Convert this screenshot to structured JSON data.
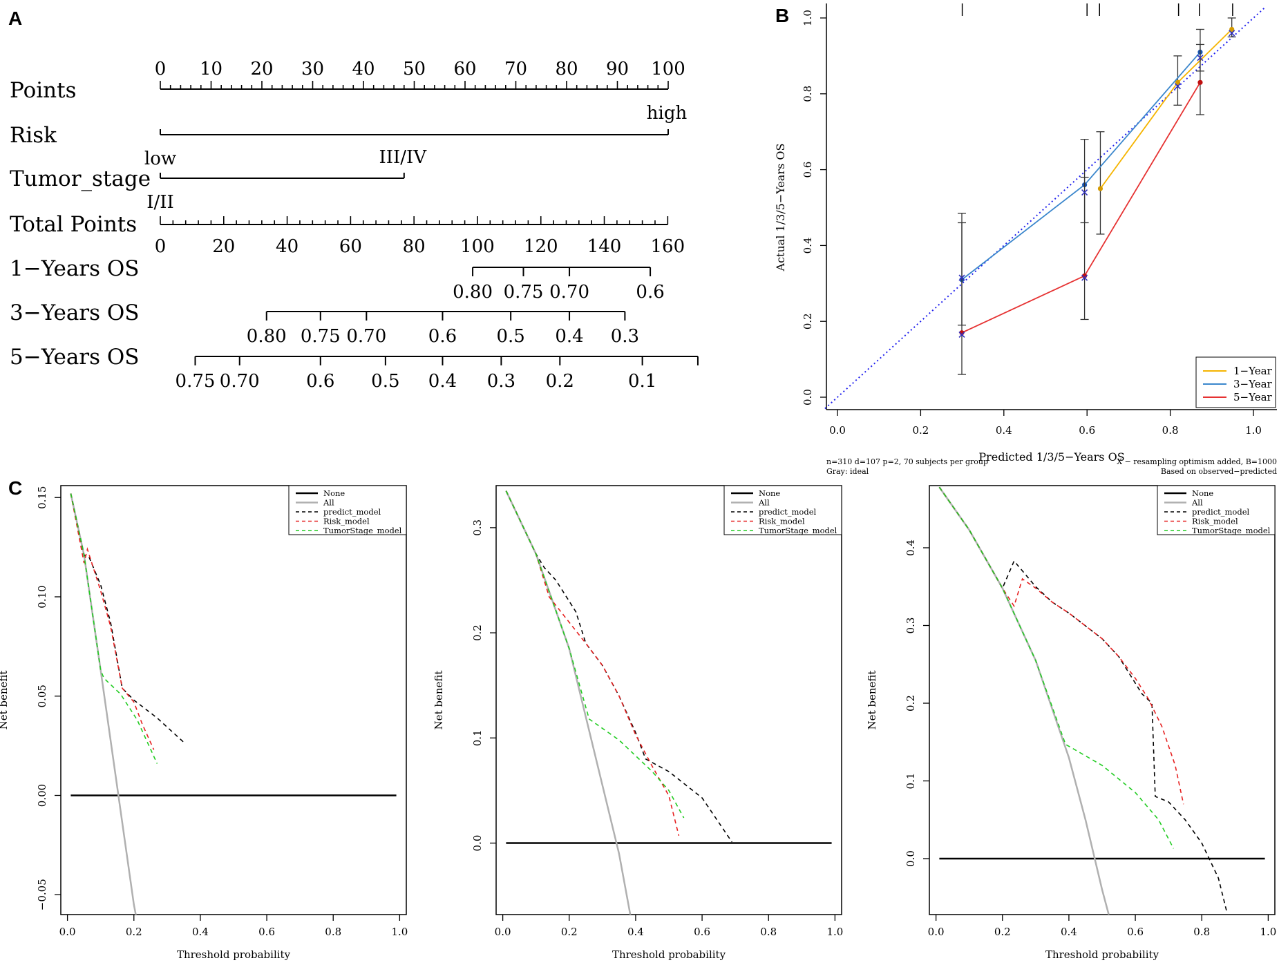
{
  "panels": {
    "a": "A",
    "b": "B",
    "c": "C"
  },
  "nomogram": {
    "rows": [
      {
        "id": "points",
        "label": "Points"
      },
      {
        "id": "risk",
        "label": "Risk"
      },
      {
        "id": "tumor",
        "label": "Tumor_stage"
      },
      {
        "id": "total",
        "label": "Total Points"
      },
      {
        "id": "os1",
        "label": "1−Years OS"
      },
      {
        "id": "os3",
        "label": "3−Years OS"
      },
      {
        "id": "os5",
        "label": "5−Years OS"
      }
    ],
    "points_ticks": [
      "0",
      "10",
      "20",
      "30",
      "40",
      "50",
      "60",
      "70",
      "80",
      "90",
      "100"
    ],
    "risk": {
      "low_label": "low",
      "high_label": "high",
      "low_points": 0,
      "high_points": 100
    },
    "tumor_stage": {
      "low_label": "I/II",
      "high_label": "III/IV",
      "low_points": 0,
      "high_points": 48
    },
    "total_points_ticks": [
      "0",
      "20",
      "40",
      "60",
      "80",
      "100",
      "120",
      "140",
      "160"
    ],
    "os1": [
      {
        "label": "0.80",
        "total": 98.5
      },
      {
        "label": "0.75",
        "total": 114.5
      },
      {
        "label": "0.70",
        "total": 129
      },
      {
        "label": "0.6",
        "total": 154.5
      }
    ],
    "os3": [
      {
        "label": "0.80",
        "total": 33.5
      },
      {
        "label": "0.75",
        "total": 50.5
      },
      {
        "label": "0.70",
        "total": 65
      },
      {
        "label": "0.6",
        "total": 89
      },
      {
        "label": "0.5",
        "total": 110.5
      },
      {
        "label": "0.4",
        "total": 129
      },
      {
        "label": "0.3",
        "total": 146.5
      }
    ],
    "os5": [
      {
        "label": "0.75",
        "total": 11
      },
      {
        "label": "0.70",
        "total": 25
      },
      {
        "label": "0.6",
        "total": 50.5
      },
      {
        "label": "0.5",
        "total": 71
      },
      {
        "label": "0.4",
        "total": 89
      },
      {
        "label": "0.3",
        "total": 107.5
      },
      {
        "label": "0.2",
        "total": 126
      },
      {
        "label": "0.1",
        "total": 152
      },
      {
        "label": "",
        "total": 169.5
      }
    ]
  },
  "chart_data": [
    {
      "type": "line",
      "panel": "B",
      "title": "",
      "xlabel": "Predicted 1/3/5−Years OS",
      "ylabel": "Actual 1/3/5−Years OS",
      "xlim": [
        -0.03,
        1.03
      ],
      "ylim": [
        -0.03,
        1.03
      ],
      "xticks": [
        "0.0",
        "0.2",
        "0.4",
        "0.6",
        "0.8",
        "1.0"
      ],
      "yticks": [
        "0.0",
        "0.2",
        "0.4",
        "0.6",
        "0.8",
        "1.0"
      ],
      "legend_position": "bottom-right",
      "series": [
        {
          "name": "1−Year",
          "color": "#f5b400",
          "points": [
            {
              "x": 0.632,
              "y": 0.55,
              "lo": 0.43,
              "hi": 0.7,
              "xc": 0.632
            },
            {
              "x": 0.818,
              "y": 0.83,
              "lo": 0.77,
              "hi": 0.9,
              "xc": 0.818
            },
            {
              "x": 0.948,
              "y": 0.97,
              "lo": 0.95,
              "hi": 1.0,
              "xc": 0.948
            }
          ]
        },
        {
          "name": "3−Year",
          "color": "#3a86cc",
          "points": [
            {
              "x": 0.299,
              "y": 0.31,
              "lo": 0.19,
              "hi": 0.485,
              "xc": 0.299
            },
            {
              "x": 0.594,
              "y": 0.56,
              "lo": 0.46,
              "hi": 0.68,
              "xc": 0.594
            },
            {
              "x": 0.872,
              "y": 0.91,
              "lo": 0.86,
              "hi": 0.97,
              "xc": 0.872
            }
          ]
        },
        {
          "name": "5−Year",
          "color": "#e63232",
          "points": [
            {
              "x": 0.299,
              "y": 0.17,
              "lo": 0.06,
              "hi": 0.46,
              "xc": 0.299
            },
            {
              "x": 0.594,
              "y": 0.32,
              "lo": 0.205,
              "hi": 0.58,
              "xc": 0.594
            },
            {
              "x": 0.872,
              "y": 0.83,
              "lo": 0.745,
              "hi": 0.93,
              "xc": 0.872
            }
          ]
        }
      ],
      "corrected_points": [
        {
          "x": 0.299,
          "y": 0.315
        },
        {
          "x": 0.594,
          "y": 0.54
        },
        {
          "x": 0.594,
          "y": 0.315
        },
        {
          "x": 0.818,
          "y": 0.82
        },
        {
          "x": 0.872,
          "y": 0.895
        },
        {
          "x": 0.948,
          "y": 0.96
        },
        {
          "x": 0.299,
          "y": 0.165
        }
      ],
      "rug_x": [
        0.3,
        0.6,
        0.63,
        0.82,
        0.87,
        0.95
      ],
      "ideal_line": {
        "color": "#2020ee",
        "style": "dotted"
      },
      "footnote_left": "n=310 d=107 p=2, 70 subjects per group",
      "footnote_left2": "Gray: ideal",
      "footnote_right": "X − resampling optimism added, B=1000",
      "footnote_right2": "Based on observed−predicted"
    },
    {
      "type": "line",
      "panel": "C1",
      "xlabel": "Threshold probability",
      "ylabel": "Net benefit",
      "xlim": [
        -0.02,
        1.02
      ],
      "ylim": [
        -0.06,
        0.156
      ],
      "xticks": [
        0,
        0.2,
        0.4,
        0.6,
        0.8,
        1.0
      ],
      "xtick_labels": [
        "0.0",
        "0.2",
        "0.4",
        "0.6",
        "0.8",
        "1.0"
      ],
      "yticks": [
        -0.05,
        0,
        0.05,
        0.1,
        0.15
      ],
      "ytick_labels": [
        "−0.05",
        "0.00",
        "0.05",
        "0.10",
        "0.15"
      ],
      "legend": [
        "None",
        "All",
        "predict_model",
        "Risk_model",
        "TumorStage_model"
      ],
      "series": [
        {
          "name": "None",
          "color": "#000000",
          "dash": "",
          "width": 2.5,
          "points": [
            [
              0.01,
              0
            ],
            [
              0.99,
              0
            ]
          ]
        },
        {
          "name": "All",
          "color": "#b0b0b0",
          "dash": "",
          "width": 2.5,
          "points": [
            [
              0.01,
              0.152
            ],
            [
              0.05,
              0.121
            ],
            [
              0.1,
              0.063
            ],
            [
              0.15,
              0.004
            ],
            [
              0.2,
              -0.055
            ],
            [
              0.208,
              -0.062
            ]
          ]
        },
        {
          "name": "predict_model",
          "color": "#000000",
          "dash": "6,5",
          "width": 1.6,
          "points": [
            [
              0.01,
              0.152
            ],
            [
              0.05,
              0.121
            ],
            [
              0.065,
              0.12
            ],
            [
              0.1,
              0.106
            ],
            [
              0.13,
              0.087
            ],
            [
              0.165,
              0.054
            ],
            [
              0.2,
              0.048
            ],
            [
              0.27,
              0.039
            ],
            [
              0.355,
              0.026
            ]
          ]
        },
        {
          "name": "Risk_model",
          "color": "#e62020",
          "dash": "6,5",
          "width": 1.6,
          "points": [
            [
              0.01,
              0.152
            ],
            [
              0.05,
              0.117
            ],
            [
              0.06,
              0.124
            ],
            [
              0.1,
              0.103
            ],
            [
              0.13,
              0.085
            ],
            [
              0.165,
              0.054
            ],
            [
              0.2,
              0.047
            ],
            [
              0.225,
              0.036
            ],
            [
              0.26,
              0.023
            ]
          ]
        },
        {
          "name": "TumorStage_model",
          "color": "#22cc22",
          "dash": "6,5",
          "width": 1.6,
          "points": [
            [
              0.01,
              0.152
            ],
            [
              0.05,
              0.121
            ],
            [
              0.1,
              0.063
            ],
            [
              0.11,
              0.059
            ],
            [
              0.16,
              0.051
            ],
            [
              0.21,
              0.038
            ],
            [
              0.27,
              0.016
            ]
          ]
        }
      ]
    },
    {
      "type": "line",
      "panel": "C2",
      "xlabel": "Threshold probability",
      "ylabel": "Net benefit",
      "xlim": [
        -0.02,
        1.02
      ],
      "ylim": [
        -0.068,
        0.34
      ],
      "xticks": [
        0,
        0.2,
        0.4,
        0.6,
        0.8,
        1.0
      ],
      "xtick_labels": [
        "0.0",
        "0.2",
        "0.4",
        "0.6",
        "0.8",
        "1.0"
      ],
      "yticks": [
        0,
        0.1,
        0.2,
        0.3
      ],
      "ytick_labels": [
        "0.0",
        "0.1",
        "0.2",
        "0.3"
      ],
      "legend": [
        "None",
        "All",
        "predict_model",
        "Risk_model",
        "TumorStage_model"
      ],
      "series": [
        {
          "name": "None",
          "color": "#000000",
          "dash": "",
          "width": 2.5,
          "points": [
            [
              0.01,
              0
            ],
            [
              0.99,
              0
            ]
          ]
        },
        {
          "name": "All",
          "color": "#b0b0b0",
          "dash": "",
          "width": 2.5,
          "points": [
            [
              0.01,
              0.335
            ],
            [
              0.1,
              0.275
            ],
            [
              0.2,
              0.185
            ],
            [
              0.3,
              0.055
            ],
            [
              0.35,
              -0.01
            ],
            [
              0.385,
              -0.07
            ]
          ]
        },
        {
          "name": "predict_model",
          "color": "#000000",
          "dash": "6,5",
          "width": 1.6,
          "points": [
            [
              0.01,
              0.335
            ],
            [
              0.1,
              0.275
            ],
            [
              0.125,
              0.262
            ],
            [
              0.16,
              0.25
            ],
            [
              0.22,
              0.22
            ],
            [
              0.25,
              0.19
            ],
            [
              0.3,
              0.169
            ],
            [
              0.35,
              0.14
            ],
            [
              0.4,
              0.105
            ],
            [
              0.43,
              0.08
            ],
            [
              0.5,
              0.068
            ],
            [
              0.6,
              0.043
            ],
            [
              0.69,
              0.001
            ]
          ]
        },
        {
          "name": "Risk_model",
          "color": "#e62020",
          "dash": "6,5",
          "width": 1.6,
          "points": [
            [
              0.01,
              0.335
            ],
            [
              0.1,
              0.275
            ],
            [
              0.14,
              0.234
            ],
            [
              0.19,
              0.214
            ],
            [
              0.25,
              0.19
            ],
            [
              0.3,
              0.169
            ],
            [
              0.35,
              0.14
            ],
            [
              0.4,
              0.103
            ],
            [
              0.45,
              0.073
            ],
            [
              0.5,
              0.045
            ],
            [
              0.53,
              0.007
            ]
          ]
        },
        {
          "name": "TumorStage_model",
          "color": "#22cc22",
          "dash": "6,5",
          "width": 1.6,
          "points": [
            [
              0.01,
              0.335
            ],
            [
              0.1,
              0.275
            ],
            [
              0.2,
              0.185
            ],
            [
              0.26,
              0.118
            ],
            [
              0.35,
              0.098
            ],
            [
              0.45,
              0.068
            ],
            [
              0.5,
              0.05
            ],
            [
              0.545,
              0.024
            ]
          ]
        }
      ]
    },
    {
      "type": "line",
      "panel": "C3",
      "xlabel": "Threshold probability",
      "ylabel": "Net benefit",
      "xlim": [
        -0.02,
        1.02
      ],
      "ylim": [
        -0.072,
        0.48
      ],
      "xticks": [
        0,
        0.2,
        0.4,
        0.6,
        0.8,
        1.0
      ],
      "xtick_labels": [
        "0.0",
        "0.2",
        "0.4",
        "0.6",
        "0.8",
        "1.0"
      ],
      "yticks": [
        0,
        0.1,
        0.2,
        0.3,
        0.4
      ],
      "ytick_labels": [
        "0.0",
        "0.1",
        "0.2",
        "0.3",
        "0.4"
      ],
      "legend": [
        "None",
        "All",
        "predict_model",
        "Risk_model",
        "TumorStage_model"
      ],
      "series": [
        {
          "name": "None",
          "color": "#000000",
          "dash": "",
          "width": 2.5,
          "points": [
            [
              0.01,
              0
            ],
            [
              0.99,
              0
            ]
          ]
        },
        {
          "name": "All",
          "color": "#b0b0b0",
          "dash": "",
          "width": 2.5,
          "points": [
            [
              0.01,
              0.478
            ],
            [
              0.1,
              0.423
            ],
            [
              0.2,
              0.348
            ],
            [
              0.3,
              0.255
            ],
            [
              0.4,
              0.13
            ],
            [
              0.45,
              0.05
            ],
            [
              0.5,
              -0.04
            ],
            [
              0.52,
              -0.072
            ]
          ]
        },
        {
          "name": "predict_model",
          "color": "#000000",
          "dash": "6,5",
          "width": 1.6,
          "points": [
            [
              0.01,
              0.478
            ],
            [
              0.1,
              0.423
            ],
            [
              0.2,
              0.348
            ],
            [
              0.205,
              0.353
            ],
            [
              0.235,
              0.383
            ],
            [
              0.3,
              0.35
            ],
            [
              0.35,
              0.33
            ],
            [
              0.4,
              0.316
            ],
            [
              0.5,
              0.283
            ],
            [
              0.55,
              0.26
            ],
            [
              0.62,
              0.212
            ],
            [
              0.65,
              0.2
            ],
            [
              0.66,
              0.08
            ],
            [
              0.7,
              0.073
            ],
            [
              0.75,
              0.05
            ],
            [
              0.8,
              0.02
            ],
            [
              0.85,
              -0.025
            ],
            [
              0.875,
              -0.068
            ]
          ]
        },
        {
          "name": "Risk_model",
          "color": "#e62020",
          "dash": "6,5",
          "width": 1.6,
          "points": [
            [
              0.01,
              0.478
            ],
            [
              0.1,
              0.423
            ],
            [
              0.2,
              0.348
            ],
            [
              0.235,
              0.325
            ],
            [
              0.26,
              0.36
            ],
            [
              0.3,
              0.348
            ],
            [
              0.35,
              0.33
            ],
            [
              0.4,
              0.316
            ],
            [
              0.5,
              0.283
            ],
            [
              0.55,
              0.26
            ],
            [
              0.6,
              0.232
            ],
            [
              0.64,
              0.205
            ],
            [
              0.68,
              0.17
            ],
            [
              0.72,
              0.12
            ],
            [
              0.745,
              0.07
            ]
          ]
        },
        {
          "name": "TumorStage_model",
          "color": "#22cc22",
          "dash": "6,5",
          "width": 1.6,
          "points": [
            [
              0.01,
              0.478
            ],
            [
              0.1,
              0.423
            ],
            [
              0.2,
              0.348
            ],
            [
              0.3,
              0.255
            ],
            [
              0.39,
              0.147
            ],
            [
              0.5,
              0.12
            ],
            [
              0.6,
              0.085
            ],
            [
              0.67,
              0.05
            ],
            [
              0.715,
              0.013
            ]
          ]
        }
      ]
    }
  ]
}
